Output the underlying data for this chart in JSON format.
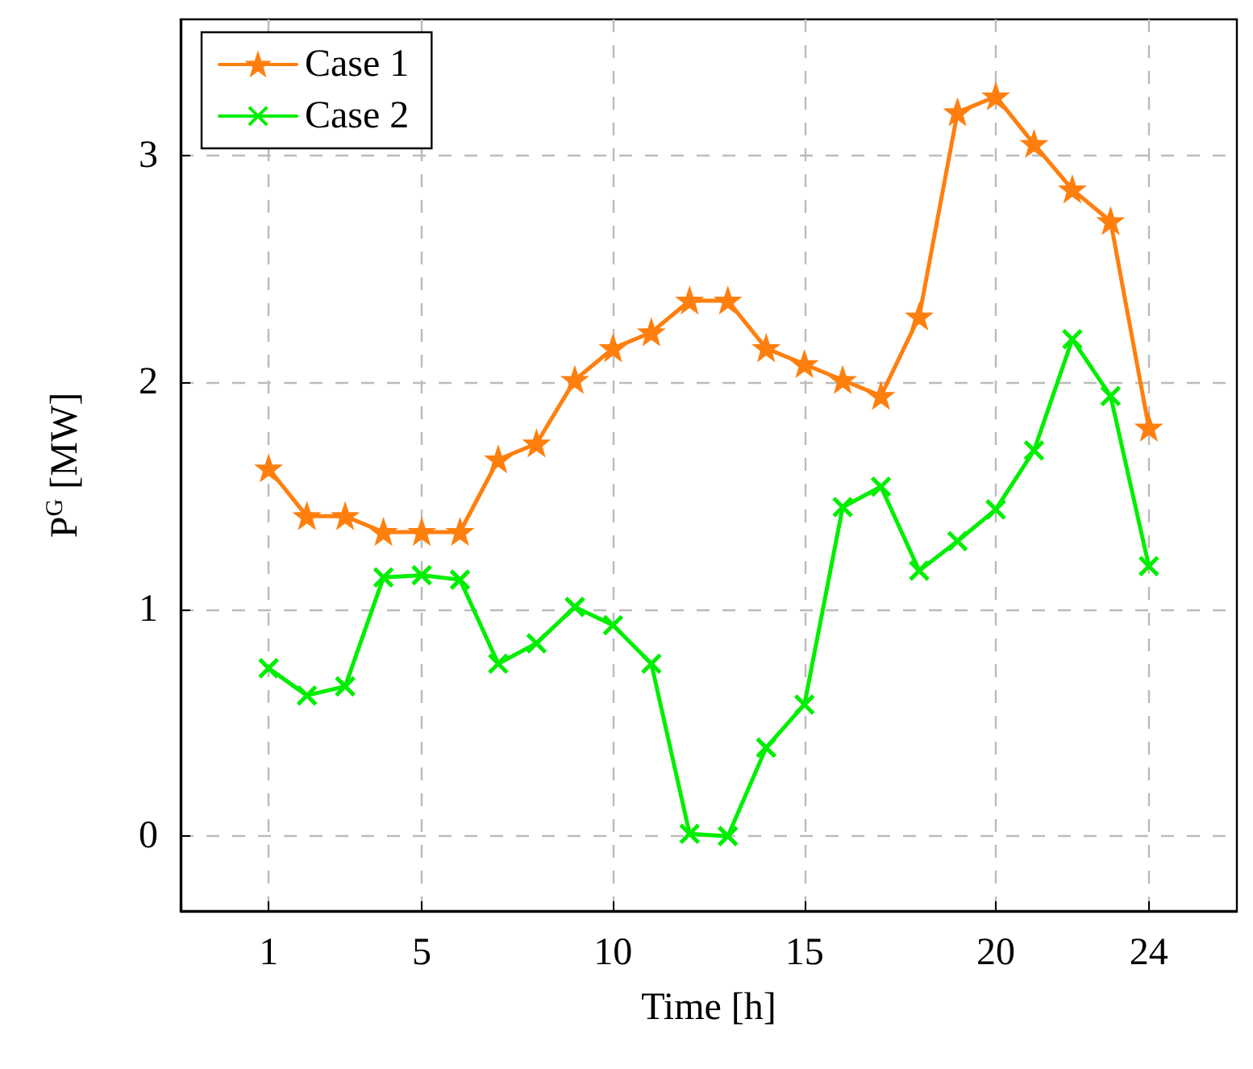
{
  "chart_data": {
    "type": "line",
    "xlabel": "Time [h]",
    "ylabel": "P$^{G}$ [MW]",
    "x": [
      1,
      2,
      3,
      4,
      5,
      6,
      7,
      8,
      9,
      10,
      11,
      12,
      13,
      14,
      15,
      16,
      17,
      18,
      19,
      20,
      21,
      22,
      23,
      24
    ],
    "series": [
      {
        "name": "Case 1",
        "color": "#ff7f0e",
        "marker": "star",
        "values": [
          1.62,
          1.41,
          1.41,
          1.34,
          1.34,
          1.34,
          1.66,
          1.73,
          2.01,
          2.15,
          2.22,
          2.36,
          2.36,
          2.15,
          2.08,
          2.01,
          1.94,
          2.29,
          3.19,
          3.26,
          3.05,
          2.85,
          2.71,
          1.8
        ]
      },
      {
        "name": "Case 2",
        "color": "#00ee00",
        "marker": "cross",
        "values": [
          0.74,
          0.62,
          0.66,
          1.14,
          1.15,
          1.13,
          0.76,
          0.85,
          1.01,
          0.93,
          0.76,
          0.01,
          0.0,
          0.39,
          0.58,
          1.45,
          1.54,
          1.17,
          1.3,
          1.44,
          1.7,
          2.19,
          1.94,
          1.19
        ]
      }
    ],
    "xlim": [
      -1.3,
      26.3
    ],
    "xticks": [
      1,
      5,
      10,
      15,
      20,
      24
    ],
    "ylim": [
      -0.33,
      3.6
    ],
    "yticks": [
      0,
      1,
      2,
      3
    ],
    "grid": true,
    "legend": "top left",
    "line_style": "solid"
  }
}
